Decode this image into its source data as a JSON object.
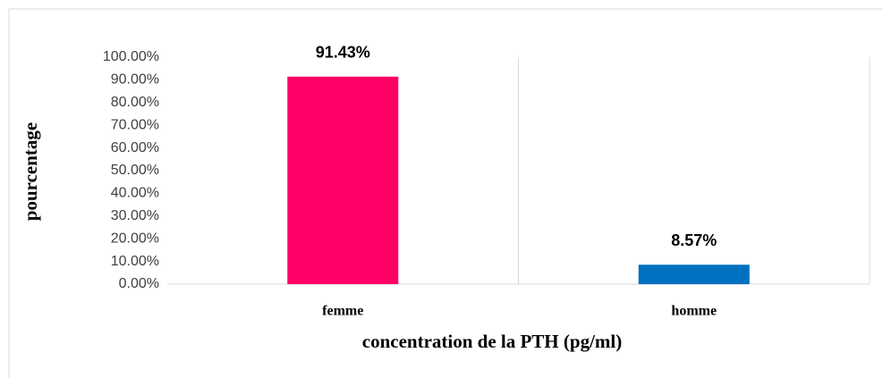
{
  "chart_data": {
    "type": "bar",
    "x_label": "concentration de la PTH (pg/ml)",
    "y_label": "pourcentage",
    "categories": [
      "femme",
      "homme"
    ],
    "values": [
      91.43,
      8.57
    ],
    "value_labels": [
      "91.43%",
      "8.57%"
    ],
    "colors": [
      "#ff0066",
      "#0070c0"
    ],
    "ylim": [
      0,
      100
    ],
    "yticks": [
      {
        "value": 0,
        "label": "0.00%"
      },
      {
        "value": 10,
        "label": "10.00%"
      },
      {
        "value": 20,
        "label": "20.00%"
      },
      {
        "value": 30,
        "label": "30.00%"
      },
      {
        "value": 40,
        "label": "40.00%"
      },
      {
        "value": 50,
        "label": "50.00%"
      },
      {
        "value": 60,
        "label": "60.00%"
      },
      {
        "value": 70,
        "label": "70.00%"
      },
      {
        "value": 80,
        "label": "80.00%"
      },
      {
        "value": 90,
        "label": "90.00%"
      },
      {
        "value": 100,
        "label": "100.00%"
      }
    ]
  }
}
